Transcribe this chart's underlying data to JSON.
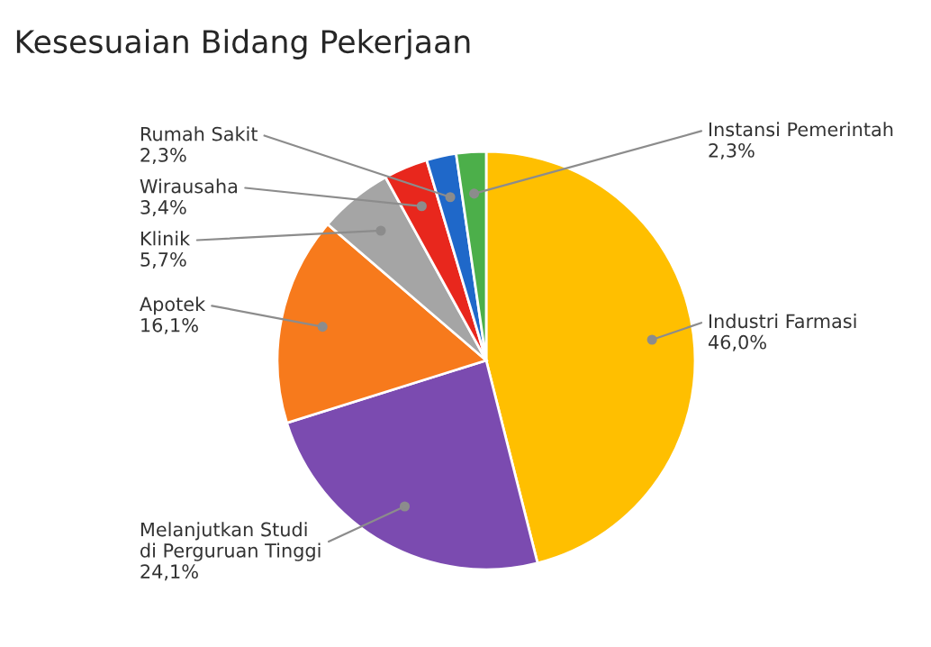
{
  "chart_data": {
    "type": "pie",
    "title": "Kesesuaian Bidang Pekerjaan",
    "categories": [
      "Industri Farmasi",
      "Melanjutkan Studi\ndi Perguruan Tinggi",
      "Apotek",
      "Klinik",
      "Wirausaha",
      "Rumah Sakit",
      "Instansi Pemerintah"
    ],
    "values": [
      46.0,
      24.1,
      16.1,
      5.7,
      3.4,
      2.3,
      2.3
    ],
    "colors": [
      "#ffbf00",
      "#7b4bb0",
      "#f77a1c",
      "#a5a5a5",
      "#e8271d",
      "#1f68c9",
      "#4caf4a"
    ],
    "value_labels": [
      "46,0%",
      "24,1%",
      "16,1%",
      "5,7%",
      "3,4%",
      "2,3%",
      "2,3%"
    ]
  }
}
